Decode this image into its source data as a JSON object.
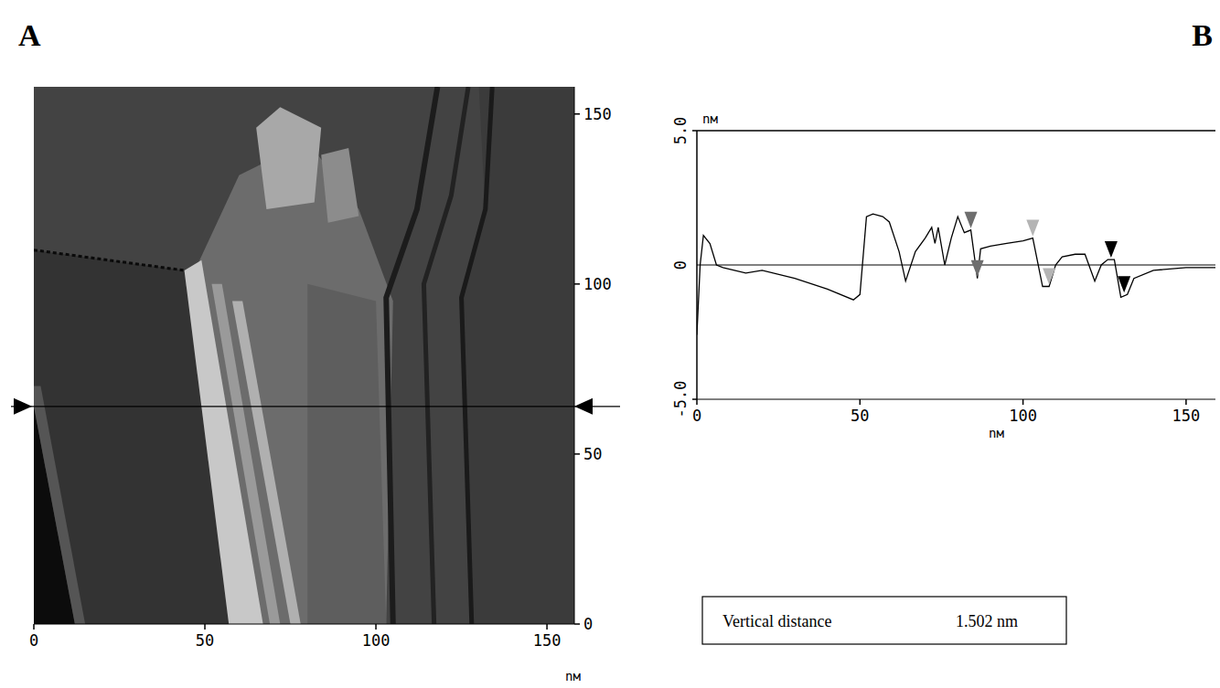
{
  "chart_data": [
    {
      "type": "image",
      "label": "A",
      "x_label": "nм",
      "xlim": [
        0,
        158
      ],
      "ylim": [
        0,
        158
      ],
      "xticks": [
        0,
        50,
        100,
        150
      ],
      "yticks": [
        0,
        50,
        100,
        150
      ],
      "section_y": 64
    },
    {
      "type": "line",
      "label": "B",
      "x_label": "nм",
      "y_label": "nм",
      "xlim": [
        0,
        159
      ],
      "ylim": [
        -5,
        5
      ],
      "xticks": [
        0,
        50,
        100,
        150
      ],
      "yticks": [
        {
          "value": -5,
          "label": "-5.0"
        },
        0,
        {
          "value": 5,
          "label": "5.0"
        }
      ],
      "color": "#000000",
      "x": [
        0,
        1,
        2,
        4,
        6,
        8,
        15,
        20,
        30,
        40,
        48,
        50,
        52,
        54,
        57,
        59,
        62,
        64,
        67,
        70,
        72,
        73,
        74,
        76,
        78,
        80,
        82,
        84,
        86,
        87,
        90,
        95,
        100,
        103,
        106,
        108,
        110,
        112,
        116,
        119,
        122,
        124,
        126,
        128,
        130,
        132,
        134,
        140,
        150,
        159
      ],
      "y": [
        -2.6,
        0,
        1.1,
        0.8,
        0,
        -0.1,
        -0.3,
        -0.2,
        -0.5,
        -0.9,
        -1.3,
        -1.1,
        1.8,
        1.9,
        1.8,
        1.6,
        0.5,
        -0.6,
        0.5,
        1.0,
        1.4,
        0.8,
        1.4,
        0.0,
        1.0,
        1.8,
        1.2,
        1.3,
        -0.5,
        0.6,
        0.7,
        0.8,
        0.9,
        1.0,
        -0.8,
        -0.8,
        0.0,
        0.3,
        0.4,
        0.4,
        -0.6,
        0.0,
        0.2,
        0.2,
        -1.2,
        -1.1,
        -0.5,
        -0.2,
        -0.1,
        -0.1
      ],
      "cursors": [
        {
          "x": 84,
          "y": 1.3,
          "color": "#6e6e6e"
        },
        {
          "x": 86,
          "y": -0.5,
          "color": "#6e6e6e"
        },
        {
          "x": 103,
          "y": 1.0,
          "color": "#b4b4b4"
        },
        {
          "x": 108,
          "y": -0.8,
          "color": "#b4b4b4"
        },
        {
          "x": 127,
          "y": 0.2,
          "color": "#000000"
        },
        {
          "x": 131,
          "y": -1.1,
          "color": "#000000"
        }
      ],
      "annotation": {
        "label": "Vertical distance",
        "value": "1.502 nm"
      }
    }
  ]
}
